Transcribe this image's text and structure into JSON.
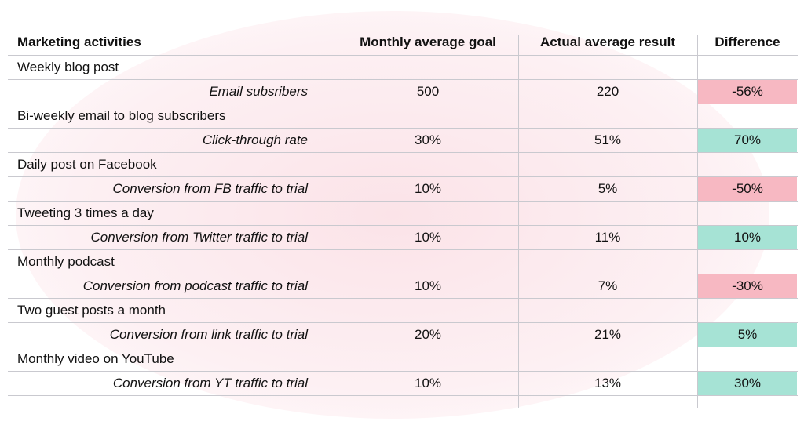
{
  "table": {
    "header": [
      "Marketing activities",
      "Monthly average goal",
      "Actual average result",
      "Difference"
    ],
    "groups": [
      {
        "activity": "Weekly blog post",
        "metric": "Email subsribers",
        "goal": "500",
        "actual": "220",
        "difference": "-56%",
        "color": "#f7b8c2"
      },
      {
        "activity": "Bi-weekly email to blog subscribers",
        "metric": "Click-through rate",
        "goal": "30%",
        "actual": "51%",
        "difference": "70%",
        "color": "#a6e3d5"
      },
      {
        "activity": "Daily post on Facebook",
        "metric": "Conversion from FB traffic to trial",
        "goal": "10%",
        "actual": "5%",
        "difference": "-50%",
        "color": "#f7b8c2"
      },
      {
        "activity": "Tweeting 3 times a day",
        "metric": "Conversion from Twitter traffic to trial",
        "goal": "10%",
        "actual": "11%",
        "difference": "10%",
        "color": "#a6e3d5"
      },
      {
        "activity": "Monthly podcast",
        "metric": "Conversion from podcast traffic to trial",
        "goal": "10%",
        "actual": "7%",
        "difference": "-30%",
        "color": "#f7b8c2"
      },
      {
        "activity": "Two guest posts a month",
        "metric": "Conversion from link traffic to trial",
        "goal": "20%",
        "actual": "21%",
        "difference": "5%",
        "color": "#a6e3d5"
      },
      {
        "activity": "Monthly video on YouTube",
        "metric": "Conversion from YT traffic to trial",
        "goal": "10%",
        "actual": "13%",
        "difference": "30%",
        "color": "#a6e3d5"
      }
    ]
  }
}
